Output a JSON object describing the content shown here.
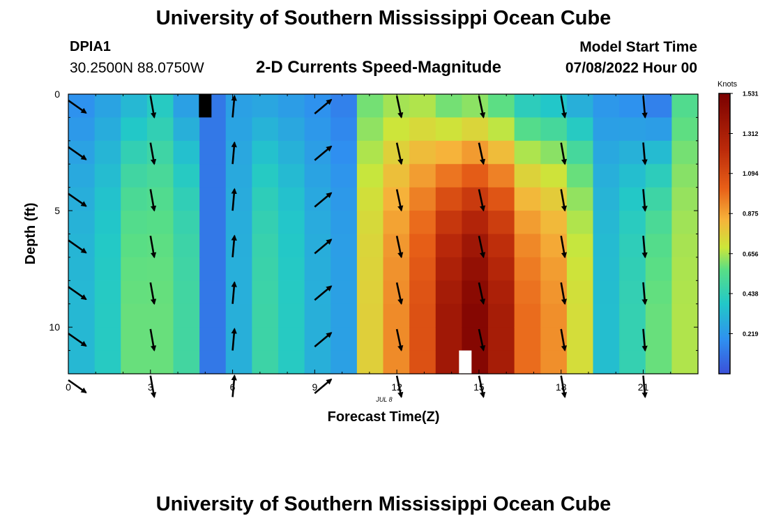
{
  "header": {
    "title": "University of Southern Mississippi Ocean Cube",
    "station": "DPIA1",
    "coords": "30.2500N  88.0750W",
    "subtitle": "2-D Currents Speed-Magnitude",
    "model_start_label": "Model Start Time",
    "model_start_value": "07/08/2022 Hour 00"
  },
  "footer": {
    "title": "University of Southern Mississippi Ocean Cube"
  },
  "colors": {
    "scale": [
      "#3b50d8",
      "#2f8ff0",
      "#22c8c8",
      "#58de86",
      "#cce63a",
      "#f6b33a",
      "#e86018",
      "#bb2a0a",
      "#7a0000"
    ]
  },
  "chart_data": {
    "type": "heatmap",
    "title": "2-D Currents Speed-Magnitude",
    "xlabel": "Forecast Time(Z)",
    "ylabel": "Depth (ft)",
    "date_annotation": "JUL 8",
    "x_ticks": [
      0,
      3,
      6,
      9,
      12,
      15,
      18,
      21
    ],
    "y_ticks": [
      0,
      5,
      10
    ],
    "xlim": [
      0,
      23
    ],
    "ylim": [
      0,
      12
    ],
    "hours": [
      0,
      1,
      2,
      3,
      4,
      5,
      6,
      7,
      8,
      9,
      10,
      11,
      12,
      13,
      14,
      15,
      16,
      17,
      18,
      19,
      20,
      21,
      22,
      23
    ],
    "depth_levels": 12,
    "surface_speed_knots": [
      0.2,
      0.26,
      0.33,
      0.4,
      0.25,
      0.12,
      0.25,
      0.27,
      0.24,
      0.2,
      0.15,
      0.62,
      0.7,
      0.72,
      0.62,
      0.66,
      0.58,
      0.42,
      0.38,
      0.3,
      0.22,
      0.2,
      0.15,
      0.55
    ],
    "bottom_speed_knots": [
      0.33,
      0.4,
      0.6,
      0.6,
      0.5,
      0.12,
      0.3,
      0.48,
      0.4,
      0.3,
      0.25,
      0.85,
      1.05,
      1.2,
      1.42,
      1.5,
      1.4,
      1.12,
      1.04,
      0.8,
      0.35,
      0.45,
      0.6,
      0.72
    ],
    "speed_profile": [
      0.0,
      0.2,
      0.42,
      0.6,
      0.74,
      0.84,
      0.91,
      0.95,
      0.98,
      1.0,
      1.0,
      1.0
    ],
    "arrows": [
      {
        "hour": 0,
        "direction_deg": 125
      },
      {
        "hour": 3,
        "direction_deg": 170
      },
      {
        "hour": 6,
        "direction_deg": 5
      },
      {
        "hour": 9,
        "direction_deg": 50
      },
      {
        "hour": 12,
        "direction_deg": 168
      },
      {
        "hour": 15,
        "direction_deg": 168
      },
      {
        "hour": 18,
        "direction_deg": 170
      },
      {
        "hour": 21,
        "direction_deg": 175
      }
    ],
    "colorbar": {
      "label": "Knots",
      "min": 0,
      "max": 1.531,
      "ticks": [
        "1.531",
        "1.312",
        "1.094",
        "0.875",
        "0.656",
        "0.438",
        "0.219"
      ]
    },
    "masked_cells": [
      {
        "hour": 5,
        "depth_level": 0,
        "color": "#000000"
      },
      {
        "hour": 14.5,
        "depth_level": 11,
        "color": "#ffffff"
      }
    ]
  }
}
